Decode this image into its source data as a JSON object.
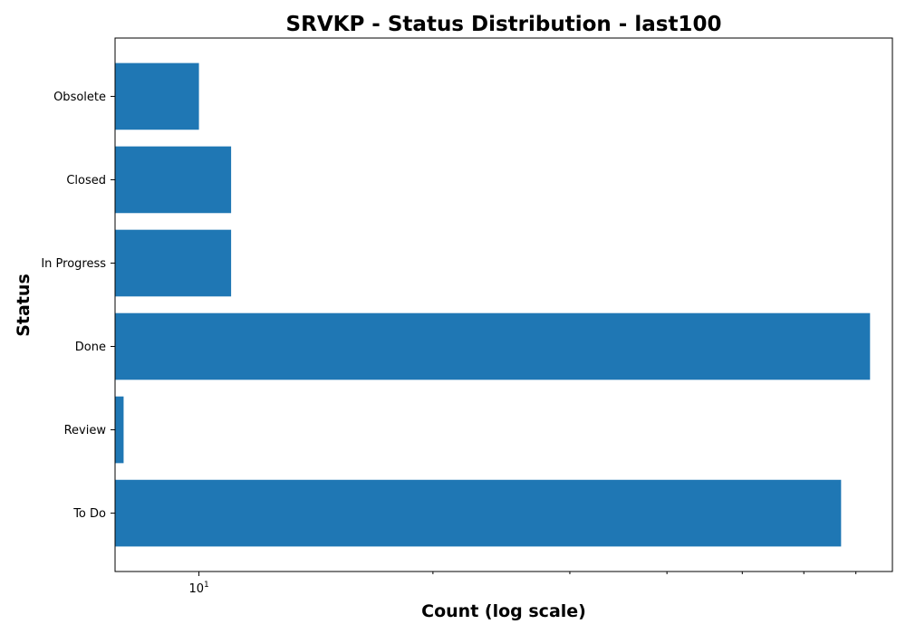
{
  "chart_data": {
    "type": "bar",
    "orientation": "horizontal",
    "title": "SRVKP - Status Distribution - last100",
    "xlabel": "Count (log scale)",
    "ylabel": "Status",
    "xscale": "log",
    "xlim": [
      7.8,
      78
    ],
    "categories": [
      "To Do",
      "Review",
      "Done",
      "In Progress",
      "Closed",
      "Obsolete"
    ],
    "values": [
      67,
      8,
      73,
      11,
      11,
      10
    ],
    "x_major_ticks": [
      {
        "value": 10,
        "base": "10",
        "exp": "1"
      }
    ],
    "x_minor_ticks": [
      20,
      30,
      40,
      50,
      60,
      70
    ],
    "bar_color": "#1f77b4",
    "grid": false,
    "legend": "none"
  }
}
